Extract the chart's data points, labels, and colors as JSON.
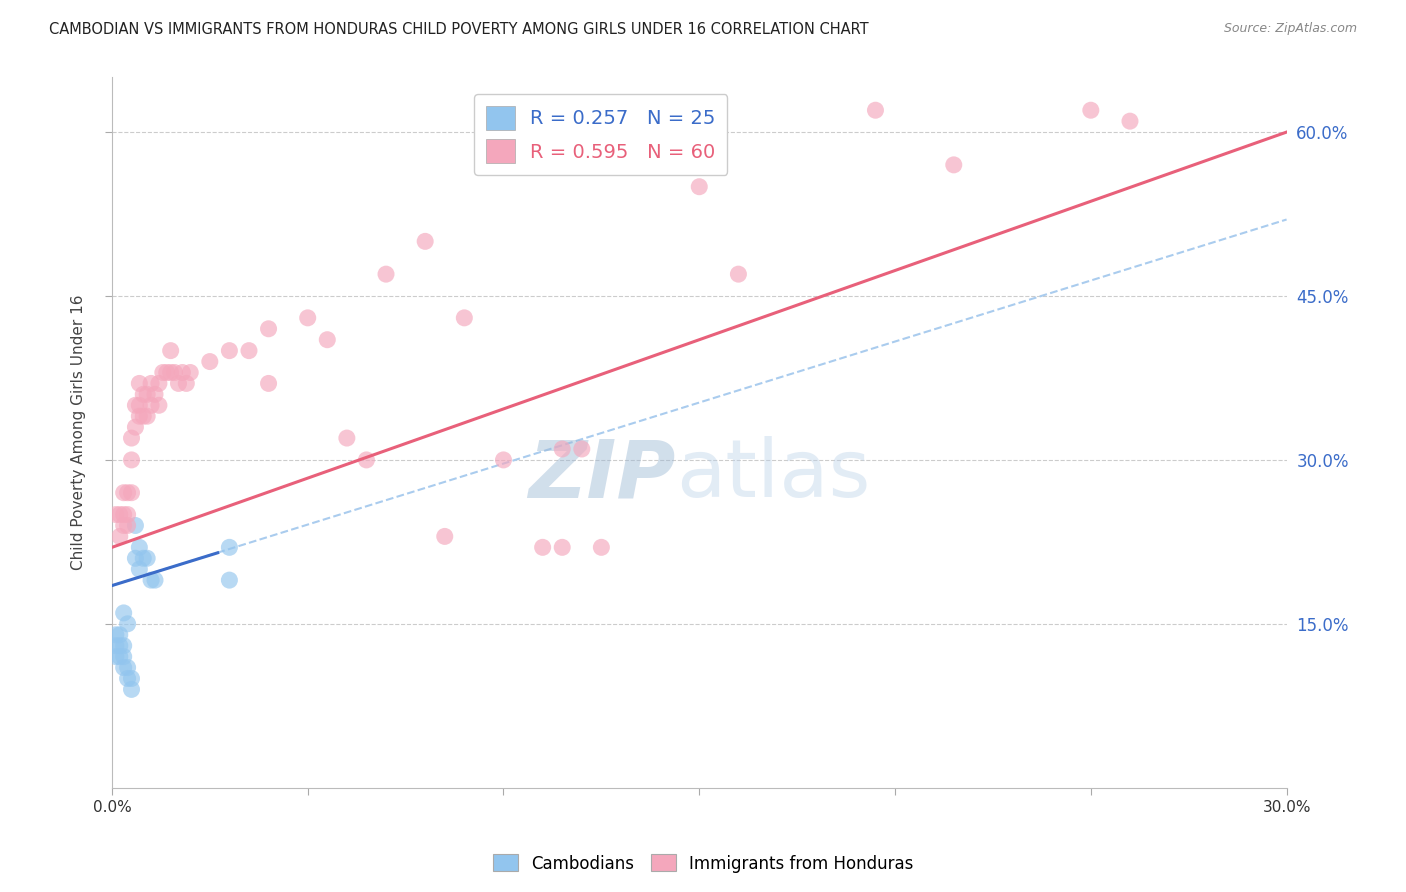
{
  "title": "CAMBODIAN VS IMMIGRANTS FROM HONDURAS CHILD POVERTY AMONG GIRLS UNDER 16 CORRELATION CHART",
  "source": "Source: ZipAtlas.com",
  "ylabel": "Child Poverty Among Girls Under 16",
  "xlim": [
    0.0,
    0.3
  ],
  "ylim": [
    0.0,
    0.65
  ],
  "xticks": [
    0.0,
    0.05,
    0.1,
    0.15,
    0.2,
    0.25,
    0.3
  ],
  "yticks_right": [
    0.15,
    0.3,
    0.45,
    0.6
  ],
  "ytick_labels_right": [
    "15.0%",
    "30.0%",
    "45.0%",
    "60.0%"
  ],
  "legend_blue_r": "R = 0.257",
  "legend_blue_n": "N = 25",
  "legend_pink_r": "R = 0.595",
  "legend_pink_n": "N = 60",
  "blue_color": "#92C5EE",
  "pink_color": "#F4A7BC",
  "blue_line_color": "#3B6CC9",
  "pink_line_color": "#E8607A",
  "dashed_line_color": "#AACCEE",
  "watermark_zip": "ZIP",
  "watermark_atlas": "atlas",
  "background_color": "#FFFFFF",
  "grid_color": "#CCCCCC",
  "blue_points": [
    [
      0.001,
      0.14
    ],
    [
      0.001,
      0.13
    ],
    [
      0.001,
      0.12
    ],
    [
      0.002,
      0.14
    ],
    [
      0.002,
      0.13
    ],
    [
      0.002,
      0.12
    ],
    [
      0.003,
      0.16
    ],
    [
      0.003,
      0.13
    ],
    [
      0.003,
      0.12
    ],
    [
      0.003,
      0.11
    ],
    [
      0.004,
      0.15
    ],
    [
      0.004,
      0.11
    ],
    [
      0.004,
      0.1
    ],
    [
      0.005,
      0.1
    ],
    [
      0.005,
      0.09
    ],
    [
      0.006,
      0.24
    ],
    [
      0.006,
      0.21
    ],
    [
      0.007,
      0.22
    ],
    [
      0.007,
      0.2
    ],
    [
      0.008,
      0.21
    ],
    [
      0.009,
      0.21
    ],
    [
      0.01,
      0.19
    ],
    [
      0.011,
      0.19
    ],
    [
      0.03,
      0.22
    ],
    [
      0.03,
      0.19
    ]
  ],
  "pink_points": [
    [
      0.001,
      0.25
    ],
    [
      0.002,
      0.25
    ],
    [
      0.002,
      0.23
    ],
    [
      0.003,
      0.27
    ],
    [
      0.003,
      0.25
    ],
    [
      0.003,
      0.24
    ],
    [
      0.004,
      0.27
    ],
    [
      0.004,
      0.25
    ],
    [
      0.004,
      0.24
    ],
    [
      0.005,
      0.32
    ],
    [
      0.005,
      0.3
    ],
    [
      0.005,
      0.27
    ],
    [
      0.006,
      0.35
    ],
    [
      0.006,
      0.33
    ],
    [
      0.007,
      0.37
    ],
    [
      0.007,
      0.35
    ],
    [
      0.007,
      0.34
    ],
    [
      0.008,
      0.36
    ],
    [
      0.008,
      0.34
    ],
    [
      0.009,
      0.36
    ],
    [
      0.009,
      0.34
    ],
    [
      0.01,
      0.37
    ],
    [
      0.01,
      0.35
    ],
    [
      0.011,
      0.36
    ],
    [
      0.012,
      0.37
    ],
    [
      0.012,
      0.35
    ],
    [
      0.013,
      0.38
    ],
    [
      0.014,
      0.38
    ],
    [
      0.015,
      0.4
    ],
    [
      0.015,
      0.38
    ],
    [
      0.016,
      0.38
    ],
    [
      0.017,
      0.37
    ],
    [
      0.018,
      0.38
    ],
    [
      0.019,
      0.37
    ],
    [
      0.02,
      0.38
    ],
    [
      0.025,
      0.39
    ],
    [
      0.03,
      0.4
    ],
    [
      0.035,
      0.4
    ],
    [
      0.04,
      0.42
    ],
    [
      0.04,
      0.37
    ],
    [
      0.05,
      0.43
    ],
    [
      0.055,
      0.41
    ],
    [
      0.06,
      0.32
    ],
    [
      0.065,
      0.3
    ],
    [
      0.07,
      0.47
    ],
    [
      0.08,
      0.5
    ],
    [
      0.085,
      0.23
    ],
    [
      0.09,
      0.43
    ],
    [
      0.1,
      0.3
    ],
    [
      0.11,
      0.22
    ],
    [
      0.115,
      0.31
    ],
    [
      0.115,
      0.22
    ],
    [
      0.12,
      0.31
    ],
    [
      0.125,
      0.22
    ],
    [
      0.15,
      0.55
    ],
    [
      0.16,
      0.47
    ],
    [
      0.195,
      0.62
    ],
    [
      0.215,
      0.57
    ],
    [
      0.25,
      0.62
    ],
    [
      0.26,
      0.61
    ]
  ],
  "blue_line": [
    [
      0.0,
      0.185
    ],
    [
      0.027,
      0.215
    ]
  ],
  "pink_line": [
    [
      0.0,
      0.22
    ],
    [
      0.3,
      0.6
    ]
  ],
  "dashed_line": [
    [
      0.0,
      0.185
    ],
    [
      0.3,
      0.52
    ]
  ]
}
